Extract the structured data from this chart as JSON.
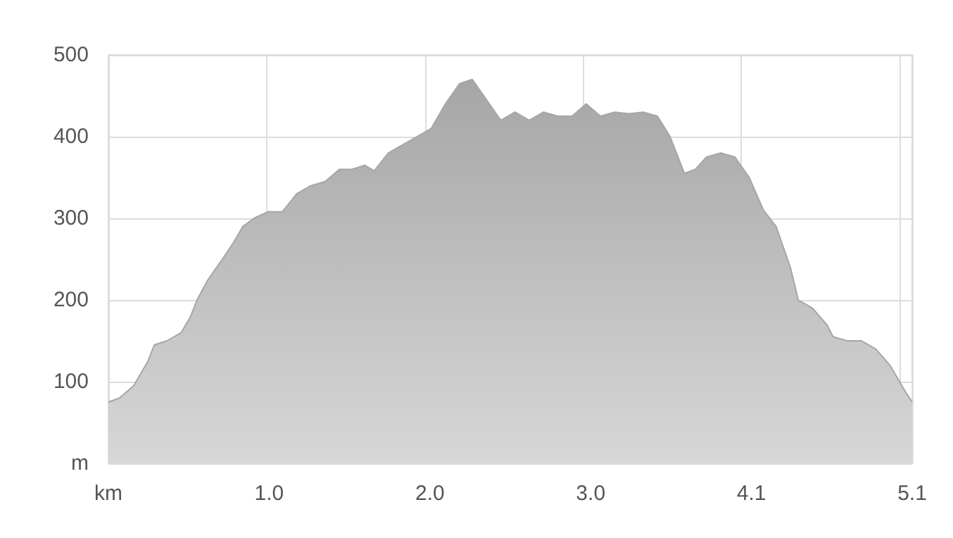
{
  "chart_data": {
    "type": "area",
    "x": [
      0,
      0.07,
      0.16,
      0.25,
      0.29,
      0.37,
      0.46,
      0.52,
      0.56,
      0.63,
      0.72,
      0.79,
      0.85,
      0.92,
      1.01,
      1.1,
      1.19,
      1.28,
      1.37,
      1.46,
      1.54,
      1.62,
      1.68,
      1.77,
      1.86,
      1.95,
      2.04,
      2.13,
      2.22,
      2.3,
      2.39,
      2.48,
      2.57,
      2.66,
      2.75,
      2.84,
      2.93,
      3.02,
      3.11,
      3.2,
      3.29,
      3.38,
      3.47,
      3.55,
      3.64,
      3.71,
      3.78,
      3.87,
      3.96,
      4.05,
      4.14,
      4.22,
      4.31,
      4.36,
      4.45,
      4.54,
      4.58,
      4.67,
      4.76,
      4.85,
      4.94,
      5.03,
      5.08
    ],
    "series": [
      {
        "color": "#a6a6a6",
        "values": [
          75,
          80,
          95,
          125,
          145,
          150,
          160,
          180,
          200,
          225,
          250,
          270,
          290,
          300,
          308,
          308,
          330,
          340,
          345,
          360,
          360,
          365,
          358,
          380,
          390,
          400,
          410,
          440,
          465,
          470,
          445,
          420,
          430,
          420,
          430,
          425,
          425,
          440,
          425,
          430,
          428,
          430,
          425,
          400,
          355,
          360,
          375,
          380,
          375,
          350,
          310,
          290,
          240,
          200,
          190,
          170,
          155,
          150,
          150,
          140,
          120,
          90,
          75
        ]
      }
    ],
    "xlim": [
      0,
      5.08
    ],
    "xticks": [
      {
        "value": 0,
        "label": "km"
      },
      {
        "value": 1.016,
        "label": "1.0"
      },
      {
        "value": 2.032,
        "label": "2.0"
      },
      {
        "value": 3.048,
        "label": "3.0"
      },
      {
        "value": 4.064,
        "label": "4.1"
      },
      {
        "value": 5.08,
        "label": "5.1"
      }
    ],
    "ylim": [
      0,
      500
    ],
    "yticks": [
      {
        "value": 0,
        "label": "m"
      },
      100,
      200,
      300,
      400,
      500
    ],
    "grid": true
  }
}
